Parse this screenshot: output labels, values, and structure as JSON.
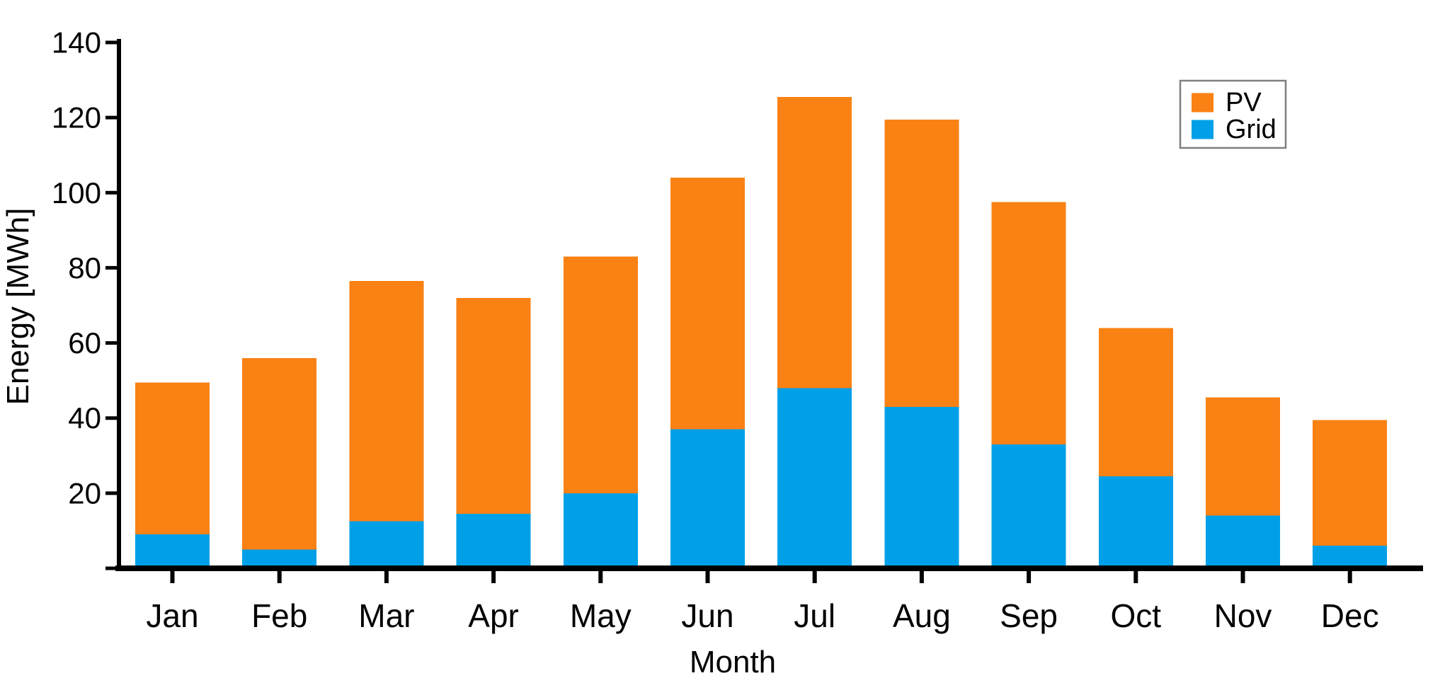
{
  "chart_data": {
    "type": "bar",
    "stacked": true,
    "title": "",
    "categories": [
      "Jan",
      "Feb",
      "Mar",
      "Apr",
      "May",
      "Jun",
      "Jul",
      "Aug",
      "Sep",
      "Oct",
      "Nov",
      "Dec"
    ],
    "series": [
      {
        "name": "PV",
        "color": "#FA8114",
        "values": [
          40.5,
          51,
          64,
          57.5,
          63,
          67,
          77.5,
          76.5,
          64.5,
          39.5,
          31.5,
          33.5
        ]
      },
      {
        "name": "Grid",
        "color": "#00A0E8",
        "values": [
          9,
          5,
          12.5,
          14.5,
          20,
          37,
          48,
          43,
          33,
          24.5,
          14,
          6
        ]
      }
    ],
    "stack_order": [
      "Grid",
      "PV"
    ],
    "totals": [
      49.5,
      56,
      76.5,
      72,
      83,
      104,
      125.5,
      119.5,
      97.5,
      64,
      45.5,
      39.5
    ],
    "xlabel": "Month",
    "ylabel": "Energy [MWh]",
    "ylim": [
      0,
      140
    ],
    "yticks": [
      20,
      40,
      60,
      80,
      100,
      120,
      140
    ],
    "grid": false,
    "legend": {
      "position": "top-right",
      "entries": [
        {
          "label": "PV",
          "color": "#FA8114"
        },
        {
          "label": "Grid",
          "color": "#00A0E8"
        }
      ]
    }
  },
  "colors": {
    "background": "#FFFFFF",
    "axis": "#000000",
    "text": "#000000",
    "legend_border": "#7F7F7F",
    "pv_orange": "#FA8114",
    "grid_blue": "#00A0E8"
  }
}
